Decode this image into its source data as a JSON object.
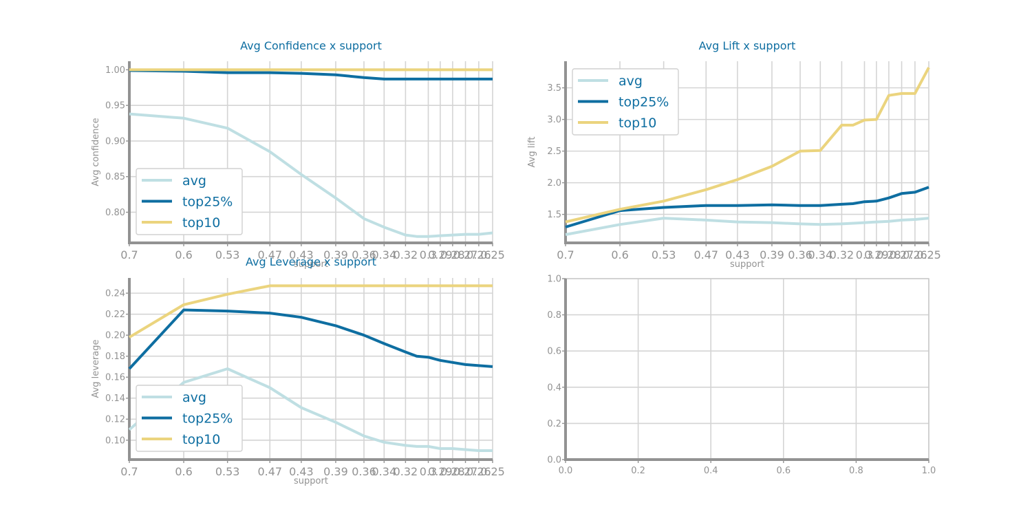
{
  "colors": {
    "avg": "#bfdfe3",
    "top25%": "#0e6ea1",
    "top10": "#ebd47e",
    "title": "#0e6ea1",
    "axis": "#929292",
    "grid": "#d4d4d4"
  },
  "chart_data": [
    {
      "id": "confidence",
      "type": "line",
      "title": "Avg Confidence x support",
      "xlabel": "support",
      "ylabel": "Avg confidence",
      "x_scale": "log-reversed",
      "x_ticks": [
        "0.7",
        "0.6",
        "0.53",
        "0.47",
        "0.43",
        "0.39",
        "0.36",
        "0.34",
        "0.32",
        "0.3",
        "0.29",
        "0.28",
        "0.27",
        "0.26",
        "0.25"
      ],
      "x": [
        0.7,
        0.6,
        0.53,
        0.47,
        0.43,
        0.39,
        0.36,
        0.34,
        0.32,
        0.31,
        0.3,
        0.29,
        0.28,
        0.27,
        0.26,
        0.25
      ],
      "ylim": [
        0.757,
        1.012
      ],
      "y_ticks": [
        "0.80",
        "0.85",
        "0.90",
        "0.95",
        "1.00"
      ],
      "legend": "lower-left",
      "grid": true,
      "series": [
        {
          "name": "avg",
          "values": [
            0.938,
            0.932,
            0.918,
            0.885,
            0.853,
            0.82,
            0.791,
            0.779,
            0.768,
            0.766,
            0.766,
            0.767,
            0.768,
            0.769,
            0.769,
            0.771
          ]
        },
        {
          "name": "top25%",
          "values": [
            0.999,
            0.998,
            0.996,
            0.996,
            0.995,
            0.993,
            0.989,
            0.987,
            0.987,
            0.987,
            0.987,
            0.987,
            0.987,
            0.987,
            0.987,
            0.987
          ]
        },
        {
          "name": "top10",
          "values": [
            1.0,
            1.0,
            1.0,
            1.0,
            1.0,
            1.0,
            1.0,
            1.0,
            1.0,
            1.0,
            1.0,
            1.0,
            1.0,
            1.0,
            1.0,
            1.0
          ]
        }
      ]
    },
    {
      "id": "lift",
      "type": "line",
      "title": "Avg Lift x support",
      "xlabel": "support",
      "ylabel": "Avg lift",
      "x_scale": "log-reversed",
      "x_ticks": [
        "0.7",
        "0.6",
        "0.53",
        "0.47",
        "0.43",
        "0.39",
        "0.36",
        "0.34",
        "0.32",
        "0.3",
        "0.29",
        "0.28",
        "0.27",
        "0.26",
        "0.25"
      ],
      "x": [
        0.7,
        0.6,
        0.53,
        0.47,
        0.43,
        0.39,
        0.36,
        0.34,
        0.32,
        0.31,
        0.3,
        0.29,
        0.28,
        0.27,
        0.26,
        0.25
      ],
      "ylim": [
        1.05,
        3.92
      ],
      "y_ticks": [
        "1.5",
        "2.0",
        "2.5",
        "3.0",
        "3.5"
      ],
      "legend": "upper-left",
      "grid": true,
      "series": [
        {
          "name": "avg",
          "values": [
            1.18,
            1.34,
            1.44,
            1.41,
            1.38,
            1.37,
            1.35,
            1.34,
            1.35,
            1.36,
            1.37,
            1.38,
            1.39,
            1.41,
            1.42,
            1.44
          ]
        },
        {
          "name": "top25%",
          "values": [
            1.3,
            1.56,
            1.61,
            1.64,
            1.64,
            1.65,
            1.64,
            1.64,
            1.66,
            1.67,
            1.7,
            1.71,
            1.76,
            1.83,
            1.85,
            1.93
          ]
        },
        {
          "name": "top10",
          "values": [
            1.38,
            1.58,
            1.71,
            1.89,
            2.05,
            2.26,
            2.5,
            2.51,
            2.91,
            2.91,
            2.99,
            3.0,
            3.38,
            3.41,
            3.41,
            3.82
          ]
        }
      ]
    },
    {
      "id": "leverage",
      "type": "line",
      "title": "Avg Leverage x support",
      "xlabel": "support",
      "ylabel": "Avg leverage",
      "x_scale": "log-reversed",
      "x_ticks": [
        "0.7",
        "0.6",
        "0.53",
        "0.47",
        "0.43",
        "0.39",
        "0.36",
        "0.34",
        "0.32",
        "0.3",
        "0.29",
        "0.28",
        "0.27",
        "0.26",
        "0.25"
      ],
      "x": [
        0.7,
        0.6,
        0.53,
        0.47,
        0.43,
        0.39,
        0.36,
        0.34,
        0.32,
        0.31,
        0.3,
        0.29,
        0.28,
        0.27,
        0.26,
        0.25
      ],
      "ylim": [
        0.0815,
        0.2545
      ],
      "y_ticks": [
        "0.10",
        "0.12",
        "0.14",
        "0.16",
        "0.18",
        "0.20",
        "0.22",
        "0.24"
      ],
      "legend": "lower-left",
      "grid": true,
      "series": [
        {
          "name": "avg",
          "values": [
            0.11,
            0.155,
            0.168,
            0.15,
            0.131,
            0.117,
            0.104,
            0.098,
            0.095,
            0.094,
            0.094,
            0.092,
            0.092,
            0.091,
            0.09,
            0.09
          ]
        },
        {
          "name": "top25%",
          "values": [
            0.168,
            0.224,
            0.223,
            0.221,
            0.217,
            0.209,
            0.2,
            0.192,
            0.184,
            0.18,
            0.179,
            0.176,
            0.174,
            0.172,
            0.171,
            0.17
          ]
        },
        {
          "name": "top10",
          "values": [
            0.198,
            0.229,
            0.239,
            0.247,
            0.247,
            0.247,
            0.247,
            0.247,
            0.247,
            0.247,
            0.247,
            0.247,
            0.247,
            0.247,
            0.247,
            0.247
          ]
        }
      ]
    },
    {
      "id": "empty",
      "type": "line",
      "title": "",
      "xlabel": "",
      "ylabel": "",
      "xlim": [
        0.0,
        1.0
      ],
      "ylim": [
        0.0,
        1.0
      ],
      "x_ticks": [
        "0.0",
        "0.2",
        "0.4",
        "0.6",
        "0.8",
        "1.0"
      ],
      "y_ticks": [
        "0.0",
        "0.2",
        "0.4",
        "0.6",
        "0.8",
        "1.0"
      ],
      "grid": true,
      "series": []
    }
  ]
}
